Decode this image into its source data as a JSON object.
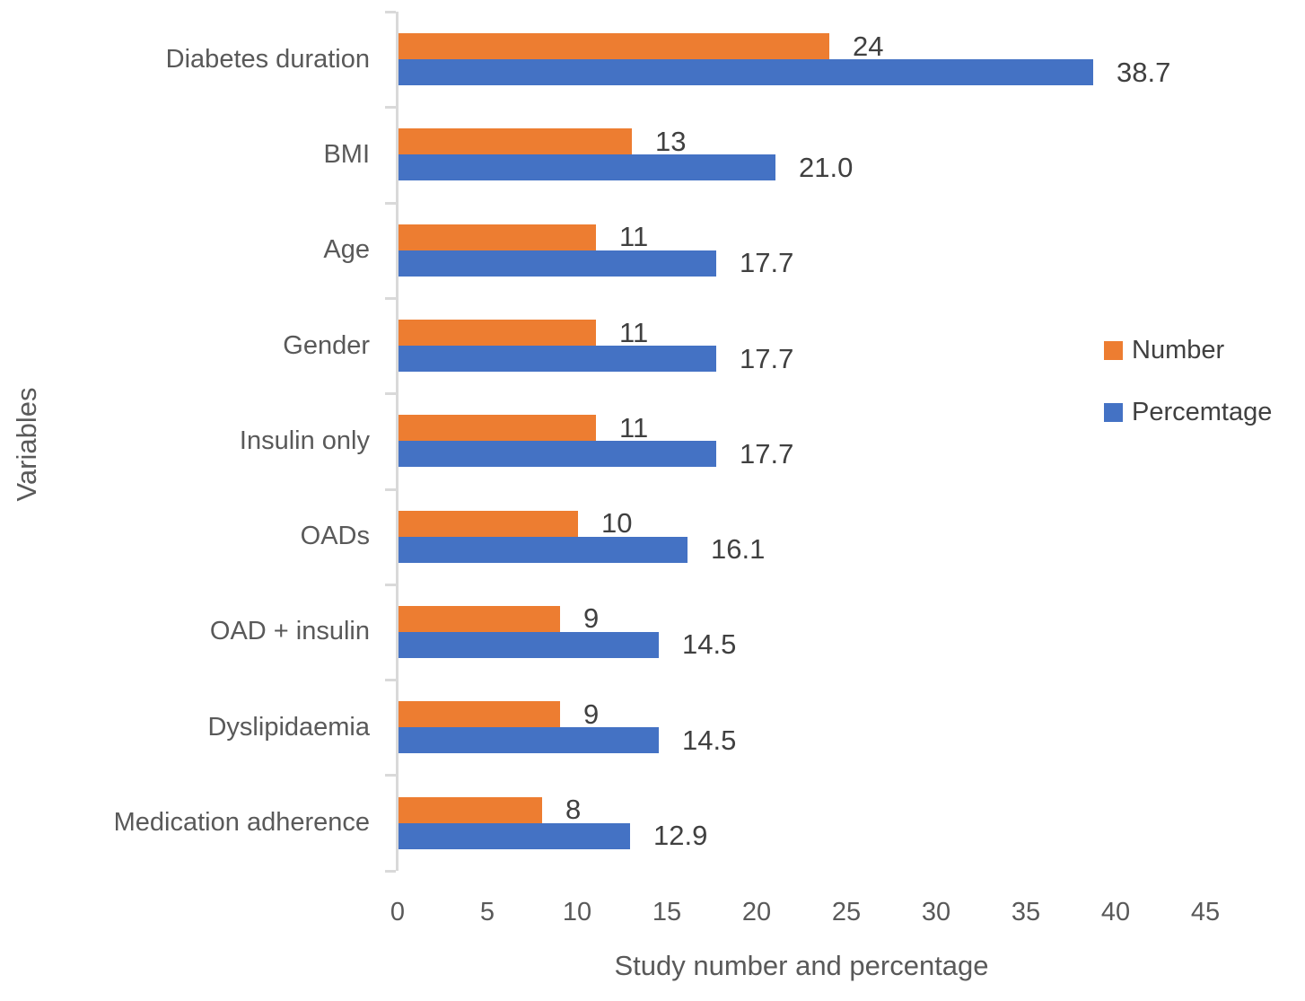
{
  "chart_data": {
    "type": "bar",
    "orientation": "horizontal",
    "xlabel": "Study number and percentage",
    "ylabel": "Variables",
    "xlim": [
      0,
      45
    ],
    "xticks": [
      0,
      5,
      10,
      15,
      20,
      25,
      30,
      35,
      40,
      45
    ],
    "grid": false,
    "legend_position": "right",
    "categories": [
      "Diabetes duration",
      "BMI",
      "Age",
      "Gender",
      "Insulin only",
      "OADs",
      "OAD + insulin",
      "Dyslipidaemia",
      "Medication adherence"
    ],
    "series": [
      {
        "name": "Number",
        "color": "#ED7D31",
        "values": [
          24,
          13,
          11,
          11,
          11,
          10,
          9,
          9,
          8
        ],
        "labels": [
          "24",
          "13",
          "11",
          "11",
          "11",
          "10",
          "9",
          "9",
          "8"
        ]
      },
      {
        "name": "Percemtage",
        "color": "#4472C4",
        "values": [
          38.7,
          21.0,
          17.7,
          17.7,
          17.7,
          16.1,
          14.5,
          14.5,
          12.9
        ],
        "labels": [
          "38.7",
          "21.0",
          "17.7",
          "17.7",
          "17.7",
          "16.1",
          "14.5",
          "14.5",
          "12.9"
        ]
      }
    ],
    "colors": {
      "axis_line": "#D9D9D9",
      "tick_label": "#595959",
      "data_label": "#404040",
      "category_label": "#595959"
    }
  }
}
